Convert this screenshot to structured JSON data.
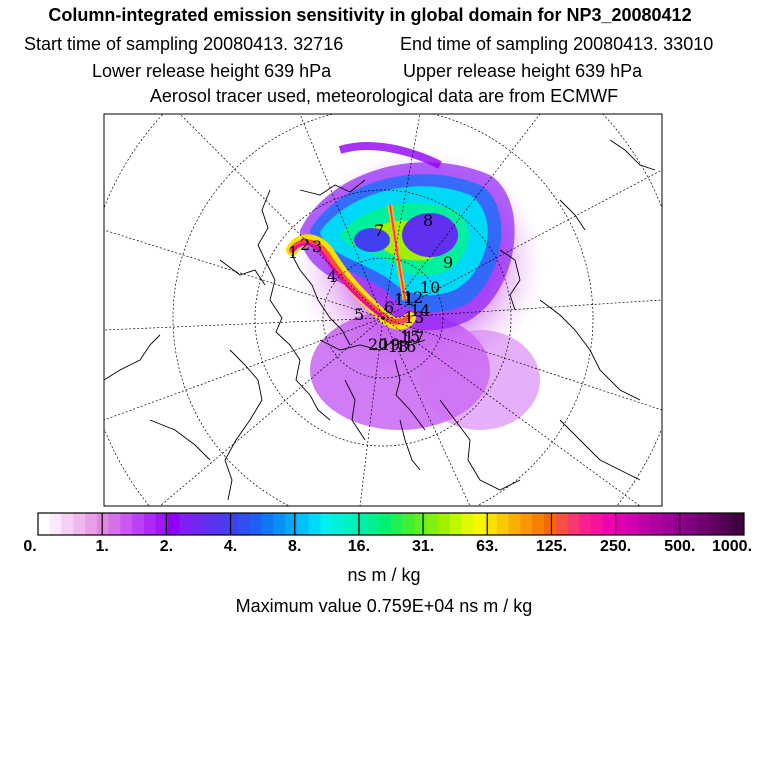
{
  "header": {
    "title": "Column-integrated emission sensitivity in global domain for NP3_20080412",
    "sampling_start": "Start time of sampling 20080413. 32716",
    "sampling_end": "End time of sampling 20080413. 33010",
    "release_lower": "Lower release height  639 hPa",
    "release_upper": "Upper release height  639 hPa",
    "tracer_info": "Aerosol tracer used, meteorological data are from ECMWF"
  },
  "colorbar": {
    "unit": "ns m / kg",
    "tick_labels": [
      "0.",
      "1.",
      "2.",
      "4.",
      "8.",
      "16.",
      "31.",
      "63.",
      "125.",
      "250.",
      "500.",
      "1000."
    ],
    "colors": [
      "#ffffff",
      "#fbe8fb",
      "#f5d0f5",
      "#efb8ef",
      "#e9a0e9",
      "#e088e0",
      "#d470e8",
      "#c858f0",
      "#bc40f4",
      "#b028f8",
      "#a018f8",
      "#9000f8",
      "#8020f4",
      "#7028f0",
      "#6030f0",
      "#5038f0",
      "#4040f0",
      "#3050f4",
      "#2060f8",
      "#1078f8",
      "#0890f8",
      "#00a8f8",
      "#00c0f8",
      "#00d8f8",
      "#00f0f0",
      "#00f0d8",
      "#00f0c0",
      "#00f0a8",
      "#00f090",
      "#00f070",
      "#20f050",
      "#40f030",
      "#60f020",
      "#80f010",
      "#a0f000",
      "#c0f800",
      "#e0f800",
      "#f8f800",
      "#f8e000",
      "#f8c800",
      "#f8b000",
      "#f89800",
      "#f88000",
      "#f86800",
      "#f85040",
      "#f83870",
      "#f82090",
      "#f810a0",
      "#f000b0",
      "#e000b0",
      "#d000b0",
      "#c000a8",
      "#b000a0",
      "#a00098",
      "#900090",
      "#800080",
      "#700070",
      "#600060",
      "#500050",
      "#400040"
    ]
  },
  "max_value": "Maximum value  0.759E+04 ns m / kg",
  "map": {
    "markers": [
      "1",
      "2",
      "3",
      "4",
      "5",
      "6",
      "7",
      "8",
      "9",
      "10",
      "11",
      "12",
      "13",
      "14",
      "15",
      "16",
      "17",
      "18",
      "19",
      "20"
    ]
  }
}
